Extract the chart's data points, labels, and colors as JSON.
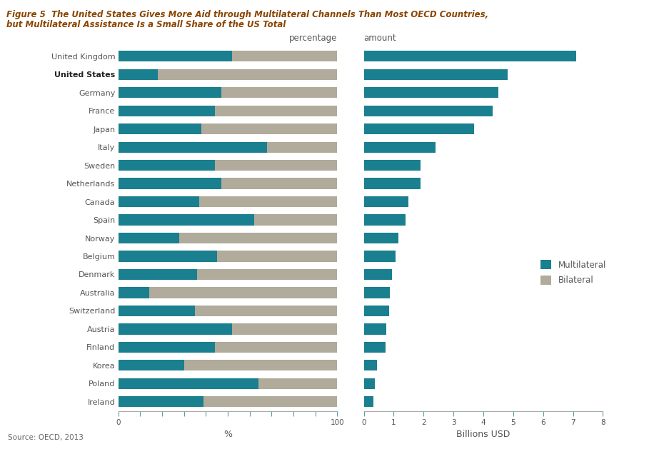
{
  "countries": [
    "United Kingdom",
    "United States",
    "Germany",
    "France",
    "Japan",
    "Italy",
    "Sweden",
    "Netherlands",
    "Canada",
    "Spain",
    "Norway",
    "Belgium",
    "Denmark",
    "Australia",
    "Switzerland",
    "Austria",
    "Finland",
    "Korea",
    "Poland",
    "Ireland"
  ],
  "multilateral_pct": [
    52,
    18,
    47,
    44,
    38,
    68,
    44,
    47,
    37,
    62,
    28,
    45,
    36,
    14,
    35,
    52,
    44,
    30,
    64,
    39
  ],
  "bilateral_pct": [
    48,
    82,
    53,
    56,
    62,
    32,
    56,
    53,
    63,
    38,
    72,
    55,
    64,
    86,
    65,
    48,
    56,
    70,
    36,
    61
  ],
  "multilateral_usd": [
    7.1,
    4.8,
    4.5,
    4.3,
    3.7,
    2.4,
    1.9,
    1.9,
    1.5,
    1.4,
    1.15,
    1.05,
    0.95,
    0.87,
    0.85,
    0.75,
    0.72,
    0.45,
    0.37,
    0.33
  ],
  "multilateral_color": "#1a7f8e",
  "bilateral_color": "#b0ab9a",
  "title_line1": "Figure 5  The United States Gives More Aid through Multilateral Channels Than Most OECD Countries,",
  "title_line2": "but Multilateral Assistance Is a Small Share of the US Total",
  "source": "Source: OECD, 2013",
  "label_pct": "percentage",
  "label_amt": "amount",
  "xlabel_pct": "%",
  "xlabel_amt": "Billions USD",
  "legend_multilateral": "Multilateral",
  "legend_bilateral": "Bilateral",
  "title_color": "#8B4500",
  "label_color": "#555555",
  "tick_color_teal": "#5b9ea0",
  "tick_color_red": "#c07050",
  "pct_tick_values": [
    0,
    10,
    20,
    30,
    40,
    50,
    60,
    70,
    80,
    90,
    100
  ],
  "amt_tick_values": [
    0,
    1,
    2,
    3,
    4,
    5,
    6,
    7,
    8
  ],
  "pct_red_ticks": [
    60,
    80
  ],
  "amt_red_ticks": [
    8
  ]
}
